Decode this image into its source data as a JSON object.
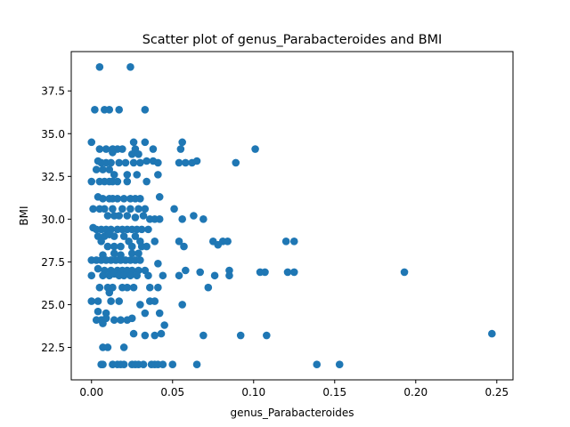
{
  "chart_data": {
    "type": "scatter",
    "title": "Scatter plot of genus_Parabacteroides and BMI",
    "xlabel": "genus_Parabacteroides",
    "ylabel": "BMI",
    "xlim": [
      -0.0125,
      0.26
    ],
    "ylim": [
      20.6,
      39.8
    ],
    "xticks": [
      0.0,
      0.05,
      0.1,
      0.15,
      0.2,
      0.25
    ],
    "xtick_labels": [
      "0.00",
      "0.05",
      "0.10",
      "0.15",
      "0.20",
      "0.25"
    ],
    "yticks": [
      22.5,
      25.0,
      27.5,
      30.0,
      32.5,
      35.0,
      37.5
    ],
    "ytick_labels": [
      "22.5",
      "25.0",
      "27.5",
      "30.0",
      "32.5",
      "35.0",
      "37.5"
    ],
    "grid": false,
    "marker_color": "#1f77b4",
    "points": [
      [
        0.005,
        38.9
      ],
      [
        0.024,
        38.9
      ],
      [
        0.002,
        36.4
      ],
      [
        0.008,
        36.4
      ],
      [
        0.011,
        36.4
      ],
      [
        0.017,
        36.4
      ],
      [
        0.033,
        36.4
      ],
      [
        0.0,
        34.5
      ],
      [
        0.026,
        34.5
      ],
      [
        0.033,
        34.5
      ],
      [
        0.056,
        34.5
      ],
      [
        0.005,
        34.1
      ],
      [
        0.009,
        34.1
      ],
      [
        0.013,
        34.1
      ],
      [
        0.016,
        34.1
      ],
      [
        0.019,
        34.1
      ],
      [
        0.027,
        34.1
      ],
      [
        0.038,
        34.1
      ],
      [
        0.055,
        34.1
      ],
      [
        0.101,
        34.1
      ],
      [
        0.013,
        33.9
      ],
      [
        0.025,
        33.8
      ],
      [
        0.029,
        33.8
      ],
      [
        0.004,
        33.4
      ],
      [
        0.006,
        33.3
      ],
      [
        0.009,
        33.3
      ],
      [
        0.012,
        33.3
      ],
      [
        0.017,
        33.3
      ],
      [
        0.021,
        33.3
      ],
      [
        0.026,
        33.3
      ],
      [
        0.03,
        33.3
      ],
      [
        0.034,
        33.4
      ],
      [
        0.038,
        33.4
      ],
      [
        0.041,
        33.3
      ],
      [
        0.054,
        33.3
      ],
      [
        0.058,
        33.3
      ],
      [
        0.062,
        33.3
      ],
      [
        0.065,
        33.4
      ],
      [
        0.089,
        33.3
      ],
      [
        0.003,
        32.9
      ],
      [
        0.007,
        32.9
      ],
      [
        0.011,
        32.9
      ],
      [
        0.014,
        32.6
      ],
      [
        0.022,
        32.6
      ],
      [
        0.028,
        32.6
      ],
      [
        0.041,
        32.6
      ],
      [
        0.0,
        32.2
      ],
      [
        0.005,
        32.2
      ],
      [
        0.008,
        32.2
      ],
      [
        0.011,
        32.2
      ],
      [
        0.013,
        32.2
      ],
      [
        0.016,
        32.2
      ],
      [
        0.022,
        32.2
      ],
      [
        0.034,
        32.2
      ],
      [
        0.004,
        31.3
      ],
      [
        0.007,
        31.2
      ],
      [
        0.011,
        31.2
      ],
      [
        0.013,
        31.2
      ],
      [
        0.016,
        31.2
      ],
      [
        0.02,
        31.2
      ],
      [
        0.024,
        31.2
      ],
      [
        0.027,
        31.2
      ],
      [
        0.03,
        31.2
      ],
      [
        0.042,
        31.3
      ],
      [
        0.001,
        30.6
      ],
      [
        0.005,
        30.6
      ],
      [
        0.008,
        30.6
      ],
      [
        0.013,
        30.6
      ],
      [
        0.019,
        30.6
      ],
      [
        0.024,
        30.6
      ],
      [
        0.029,
        30.6
      ],
      [
        0.033,
        30.6
      ],
      [
        0.051,
        30.6
      ],
      [
        0.01,
        30.2
      ],
      [
        0.014,
        30.2
      ],
      [
        0.017,
        30.2
      ],
      [
        0.022,
        30.2
      ],
      [
        0.027,
        30.1
      ],
      [
        0.032,
        30.2
      ],
      [
        0.036,
        30.0
      ],
      [
        0.039,
        30.0
      ],
      [
        0.042,
        30.0
      ],
      [
        0.056,
        30.0
      ],
      [
        0.063,
        30.2
      ],
      [
        0.069,
        30.0
      ],
      [
        0.001,
        29.5
      ],
      [
        0.003,
        29.4
      ],
      [
        0.006,
        29.4
      ],
      [
        0.009,
        29.4
      ],
      [
        0.012,
        29.4
      ],
      [
        0.016,
        29.4
      ],
      [
        0.019,
        29.4
      ],
      [
        0.022,
        29.4
      ],
      [
        0.025,
        29.4
      ],
      [
        0.028,
        29.4
      ],
      [
        0.031,
        29.4
      ],
      [
        0.035,
        29.4
      ],
      [
        0.004,
        29.0
      ],
      [
        0.008,
        29.0
      ],
      [
        0.011,
        29.1
      ],
      [
        0.014,
        29.0
      ],
      [
        0.02,
        29.0
      ],
      [
        0.027,
        29.0
      ],
      [
        0.006,
        28.7
      ],
      [
        0.023,
        28.7
      ],
      [
        0.03,
        28.7
      ],
      [
        0.039,
        28.7
      ],
      [
        0.054,
        28.7
      ],
      [
        0.057,
        28.4
      ],
      [
        0.075,
        28.7
      ],
      [
        0.078,
        28.5
      ],
      [
        0.081,
        28.7
      ],
      [
        0.084,
        28.7
      ],
      [
        0.12,
        28.7
      ],
      [
        0.125,
        28.7
      ],
      [
        0.01,
        28.4
      ],
      [
        0.014,
        28.4
      ],
      [
        0.018,
        28.4
      ],
      [
        0.025,
        28.4
      ],
      [
        0.031,
        28.4
      ],
      [
        0.034,
        28.4
      ],
      [
        0.007,
        27.9
      ],
      [
        0.014,
        28.0
      ],
      [
        0.018,
        27.9
      ],
      [
        0.025,
        28.0
      ],
      [
        0.029,
        28.0
      ],
      [
        0.0,
        27.6
      ],
      [
        0.003,
        27.6
      ],
      [
        0.006,
        27.6
      ],
      [
        0.009,
        27.6
      ],
      [
        0.012,
        27.6
      ],
      [
        0.015,
        27.6
      ],
      [
        0.018,
        27.6
      ],
      [
        0.021,
        27.6
      ],
      [
        0.024,
        27.6
      ],
      [
        0.027,
        27.6
      ],
      [
        0.03,
        27.6
      ],
      [
        0.041,
        27.4
      ],
      [
        0.004,
        27.1
      ],
      [
        0.008,
        27.0
      ],
      [
        0.012,
        27.0
      ],
      [
        0.016,
        27.0
      ],
      [
        0.019,
        27.0
      ],
      [
        0.022,
        27.0
      ],
      [
        0.025,
        27.0
      ],
      [
        0.029,
        27.0
      ],
      [
        0.033,
        27.0
      ],
      [
        0.058,
        27.0
      ],
      [
        0.067,
        26.9
      ],
      [
        0.085,
        27.0
      ],
      [
        0.104,
        26.9
      ],
      [
        0.107,
        26.9
      ],
      [
        0.121,
        26.9
      ],
      [
        0.125,
        26.9
      ],
      [
        0.193,
        26.9
      ],
      [
        0.0,
        26.7
      ],
      [
        0.007,
        26.7
      ],
      [
        0.011,
        26.7
      ],
      [
        0.014,
        26.8
      ],
      [
        0.017,
        26.7
      ],
      [
        0.02,
        26.7
      ],
      [
        0.024,
        26.7
      ],
      [
        0.028,
        26.7
      ],
      [
        0.035,
        26.7
      ],
      [
        0.044,
        26.7
      ],
      [
        0.054,
        26.7
      ],
      [
        0.076,
        26.7
      ],
      [
        0.085,
        26.7
      ],
      [
        0.005,
        26.0
      ],
      [
        0.01,
        26.0
      ],
      [
        0.013,
        26.0
      ],
      [
        0.019,
        26.0
      ],
      [
        0.022,
        26.0
      ],
      [
        0.026,
        26.0
      ],
      [
        0.036,
        26.0
      ],
      [
        0.041,
        26.0
      ],
      [
        0.072,
        26.0
      ],
      [
        0.011,
        25.7
      ],
      [
        0.0,
        25.2
      ],
      [
        0.004,
        25.2
      ],
      [
        0.012,
        25.2
      ],
      [
        0.017,
        25.2
      ],
      [
        0.036,
        25.2
      ],
      [
        0.039,
        25.2
      ],
      [
        0.03,
        25.0
      ],
      [
        0.056,
        25.0
      ],
      [
        0.004,
        24.6
      ],
      [
        0.009,
        24.5
      ],
      [
        0.033,
        24.5
      ],
      [
        0.042,
        24.5
      ],
      [
        0.003,
        24.1
      ],
      [
        0.006,
        24.1
      ],
      [
        0.009,
        24.2
      ],
      [
        0.014,
        24.1
      ],
      [
        0.018,
        24.1
      ],
      [
        0.022,
        24.1
      ],
      [
        0.025,
        24.2
      ],
      [
        0.007,
        23.9
      ],
      [
        0.045,
        23.8
      ],
      [
        0.026,
        23.3
      ],
      [
        0.033,
        23.2
      ],
      [
        0.039,
        23.2
      ],
      [
        0.043,
        23.3
      ],
      [
        0.069,
        23.2
      ],
      [
        0.092,
        23.2
      ],
      [
        0.108,
        23.2
      ],
      [
        0.247,
        23.3
      ],
      [
        0.007,
        22.5
      ],
      [
        0.01,
        22.5
      ],
      [
        0.02,
        22.5
      ],
      [
        0.006,
        21.5
      ],
      [
        0.007,
        21.5
      ],
      [
        0.013,
        21.5
      ],
      [
        0.016,
        21.5
      ],
      [
        0.018,
        21.5
      ],
      [
        0.02,
        21.5
      ],
      [
        0.025,
        21.5
      ],
      [
        0.027,
        21.5
      ],
      [
        0.029,
        21.5
      ],
      [
        0.032,
        21.5
      ],
      [
        0.037,
        21.5
      ],
      [
        0.039,
        21.5
      ],
      [
        0.041,
        21.5
      ],
      [
        0.044,
        21.5
      ],
      [
        0.05,
        21.5
      ],
      [
        0.065,
        21.5
      ],
      [
        0.139,
        21.5
      ],
      [
        0.153,
        21.5
      ]
    ]
  }
}
